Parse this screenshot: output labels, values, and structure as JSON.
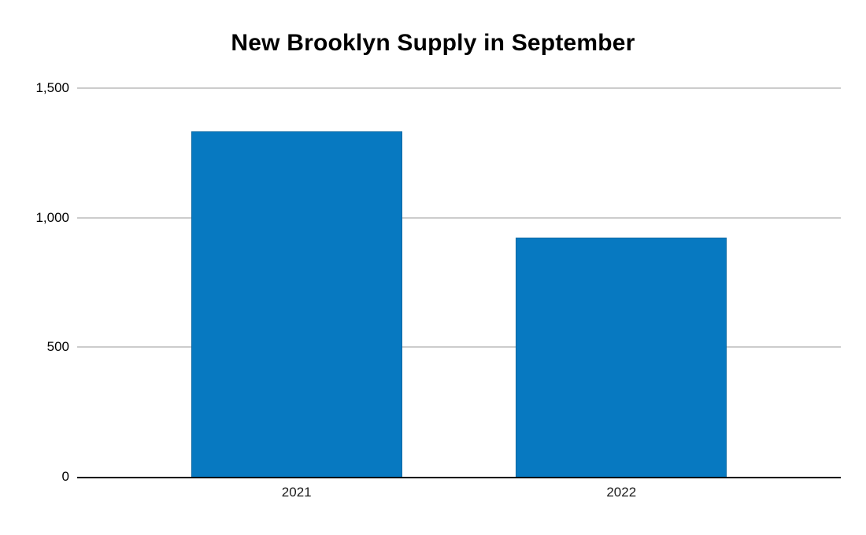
{
  "chart_data": {
    "type": "bar",
    "title": "New Brooklyn Supply in September",
    "categories": [
      "2021",
      "2022"
    ],
    "values": [
      1334,
      924
    ],
    "xlabel": "",
    "ylabel": "",
    "ylim": [
      0,
      1500
    ],
    "yticks": [
      0,
      500,
      1000,
      1500
    ],
    "ytick_labels": [
      "0",
      "500",
      "1,000",
      "1,500"
    ],
    "grid": true,
    "legend": false,
    "bar_color": "#0779c1",
    "bar_border_color": "#0b68a3",
    "gridline_color": "#cccccc",
    "axis_color": "#000000",
    "text_color": "#000000",
    "background_color": "#ffffff"
  }
}
